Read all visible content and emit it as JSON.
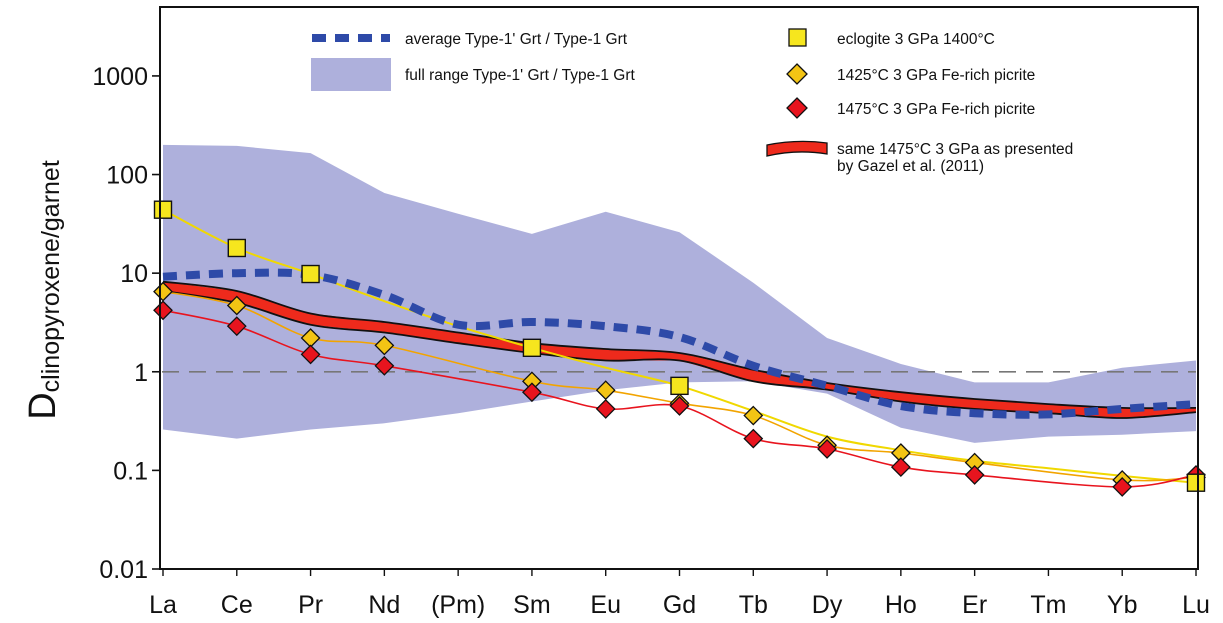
{
  "chart_data": {
    "type": "line",
    "ylabel": {
      "main": "D",
      "subscript": "clinopyroxene/garnet"
    },
    "yscale": "log",
    "ylim": [
      0.01,
      5000
    ],
    "yticks": [
      {
        "value": 1000,
        "label": "1000"
      },
      {
        "value": 100,
        "label": "100"
      },
      {
        "value": 10,
        "label": "10"
      },
      {
        "value": 1,
        "label": "1"
      },
      {
        "value": 0.1,
        "label": "0.1"
      },
      {
        "value": 0.01,
        "label": "0.01"
      }
    ],
    "categories": [
      "La",
      "Ce",
      "Pr",
      "Nd",
      "(Pm)",
      "Sm",
      "Eu",
      "Gd",
      "Tb",
      "Dy",
      "Ho",
      "Er",
      "Tm",
      "Yb",
      "Lu"
    ],
    "reference_line": 1,
    "colors": {
      "range_fill": "#aeb0dc",
      "average": "#2e4aa8",
      "eclogite_fill": "#f6e61e",
      "eclogite_line": "#f0d800",
      "picrite1425_fill": "#f3c414",
      "picrite1425_line": "#f2a400",
      "picrite1475_fill": "#e8141e",
      "picrite1475_line": "#e8141e",
      "band_fill": "#ee2a1c",
      "band_edge": "#111111"
    },
    "range_band": {
      "name": "full range Type-1' Grt / Type-1 Grt",
      "upper": [
        200,
        195,
        165,
        65,
        40,
        25,
        42,
        26,
        8,
        2.2,
        1.2,
        0.78,
        0.78,
        1.1,
        1.3
      ],
      "lower": [
        0.26,
        0.21,
        0.26,
        0.3,
        0.38,
        0.5,
        0.65,
        0.78,
        0.8,
        0.6,
        0.27,
        0.19,
        0.22,
        0.23,
        0.25
      ]
    },
    "series": [
      {
        "name": "average Type-1' Grt / Type-1 Grt",
        "style": "dashed",
        "values": [
          9.2,
          10,
          9.6,
          6,
          3,
          3.2,
          2.9,
          2.25,
          1.15,
          0.72,
          0.45,
          0.38,
          0.37,
          0.42,
          0.47
        ]
      },
      {
        "name": "eclogite 3 GPa 1400°C",
        "marker": "square",
        "values": [
          44,
          18,
          9.8,
          null,
          null,
          1.75,
          null,
          0.72,
          null,
          null,
          null,
          null,
          null,
          null,
          0.075
        ],
        "line": [
          44,
          18,
          9.8,
          5.2,
          2.9,
          1.75,
          1.1,
          0.72,
          0.4,
          0.22,
          0.16,
          0.125,
          0.105,
          0.088,
          0.075
        ]
      },
      {
        "name": "1425°C 3 GPa Fe-rich picrite",
        "marker": "diamond",
        "values": [
          6.5,
          4.7,
          2.2,
          1.85,
          null,
          0.8,
          0.65,
          0.48,
          0.36,
          0.18,
          0.15,
          0.12,
          null,
          0.08,
          0.085
        ]
      },
      {
        "name": "1475°C 3 GPa Fe-rich picrite",
        "marker": "diamond",
        "values": [
          4.2,
          2.9,
          1.5,
          1.15,
          null,
          0.62,
          0.42,
          0.45,
          0.21,
          0.165,
          0.108,
          0.09,
          null,
          0.068,
          0.09
        ]
      }
    ],
    "band": {
      "name": "same 1475°C 3 GPa as presented",
      "name_line2": "by Gazel et al. (2011)",
      "upper": [
        8.2,
        6.6,
        3.9,
        3.2,
        2.5,
        1.95,
        1.7,
        1.55,
        1.05,
        0.77,
        0.62,
        0.53,
        0.47,
        0.43,
        0.43
      ],
      "lower": [
        6.6,
        5.0,
        3.0,
        2.5,
        1.95,
        1.55,
        1.3,
        1.3,
        0.8,
        0.66,
        0.5,
        0.42,
        0.38,
        0.34,
        0.39
      ]
    }
  }
}
